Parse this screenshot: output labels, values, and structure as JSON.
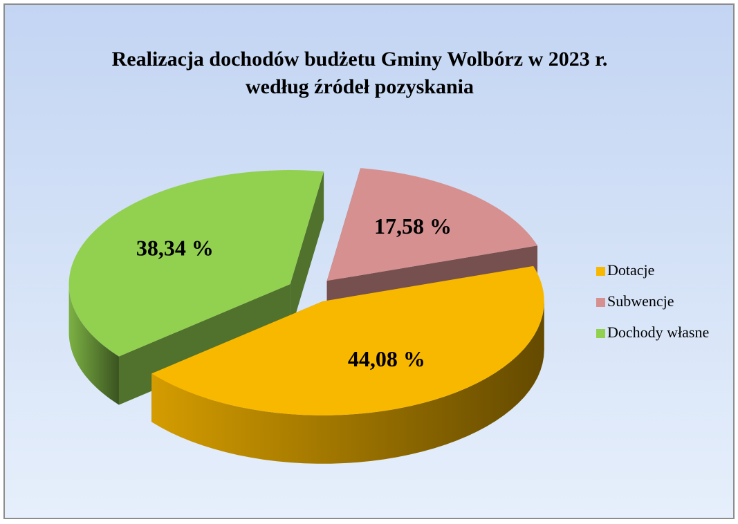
{
  "chart_data": {
    "type": "pie3d",
    "title_lines": [
      "Realizacja dochodów budżetu Gminy Wolbórz w 2023 r.",
      "według źródeł pozyskania"
    ],
    "categories": [
      "Dotacje",
      "Subwencje",
      "Dochody własne"
    ],
    "values": [
      44.08,
      17.58,
      38.34
    ],
    "value_labels": [
      "44,08 %",
      "17,58 %",
      "38,34 %"
    ],
    "colors": [
      "#f9b800",
      "#d69090",
      "#92d050"
    ],
    "legend": "right"
  }
}
